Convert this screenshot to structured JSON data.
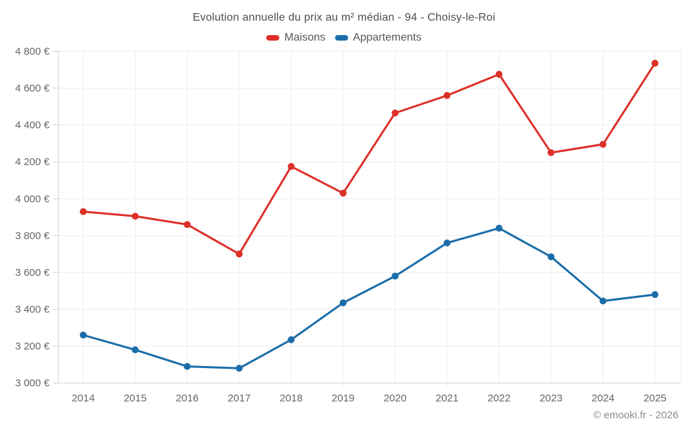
{
  "chart_data": {
    "type": "line",
    "title": "Evolution annuelle du prix au m² médian - 94 - Choisy-le-Roi",
    "x": [
      "2014",
      "2015",
      "2016",
      "2017",
      "2018",
      "2019",
      "2020",
      "2021",
      "2022",
      "2023",
      "2024",
      "2025"
    ],
    "series": [
      {
        "name": "Maisons",
        "color": "#dd3028",
        "values": [
          3930,
          3905,
          3860,
          3700,
          4175,
          4030,
          4465,
          4560,
          4675,
          4250,
          4295,
          4735
        ]
      },
      {
        "name": "Appartements",
        "color": "#1a6da8",
        "values": [
          3260,
          3180,
          3090,
          3080,
          3235,
          3435,
          3580,
          3760,
          3840,
          3685,
          3445,
          3480
        ]
      }
    ],
    "y_axis": {
      "min": 3000,
      "max": 4800,
      "step": 200,
      "tick_labels": [
        "3 000 €",
        "3 200 €",
        "3 400 €",
        "3 600 €",
        "3 800 €",
        "4 000 €",
        "4 200 €",
        "4 400 €",
        "4 600 €",
        "4 800 €"
      ]
    },
    "legend_position": "top",
    "grid": true
  },
  "colors": {
    "maisons": "#dd3028",
    "appartements": "#1a6da8",
    "gridline": "#ededed",
    "axis_line": "#d4d4d4",
    "tick": "#cccccc",
    "axis_text": "#666666"
  },
  "footer": {
    "credit": "© emooki.fr - 2026"
  }
}
